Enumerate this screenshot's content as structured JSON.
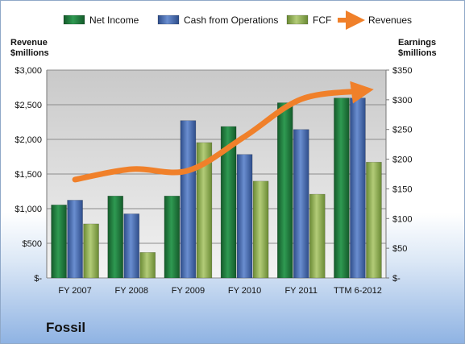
{
  "chart_data": {
    "type": "bar",
    "title": "Fossil",
    "categories": [
      "FY 2007",
      "FY 2008",
      "FY 2009",
      "FY 2010",
      "FY 2011",
      "TTM 6-2012"
    ],
    "series": [
      {
        "name": "Net Income",
        "axis": "right",
        "color": "#217a3e",
        "values": [
          123,
          138,
          138,
          255,
          295,
          303
        ]
      },
      {
        "name": "Cash from Operations",
        "axis": "right",
        "color": "#4a6db0",
        "values": [
          131,
          108,
          265,
          208,
          250,
          303
        ]
      },
      {
        "name": "FCF",
        "axis": "right",
        "color": "#8fae4f",
        "values": [
          91,
          43,
          228,
          163,
          141,
          195
        ]
      },
      {
        "name": "Revenues",
        "axis": "left",
        "type": "line",
        "color": "#f0802a",
        "values": [
          1420,
          1570,
          1550,
          2040,
          2580,
          2700
        ]
      }
    ],
    "left_axis": {
      "label": "Revenue $millions",
      "range": [
        0,
        3000
      ],
      "ticks": [
        "$-",
        "$500",
        "$1,000",
        "$1,500",
        "$2,000",
        "$2,500",
        "$3,000"
      ]
    },
    "right_axis": {
      "label": "Earnings $millions",
      "range": [
        0,
        350
      ],
      "ticks": [
        "$-",
        "$50",
        "$100",
        "$150",
        "$200",
        "$250",
        "$300",
        "$350"
      ]
    },
    "legend_position": "top",
    "grid": true
  }
}
